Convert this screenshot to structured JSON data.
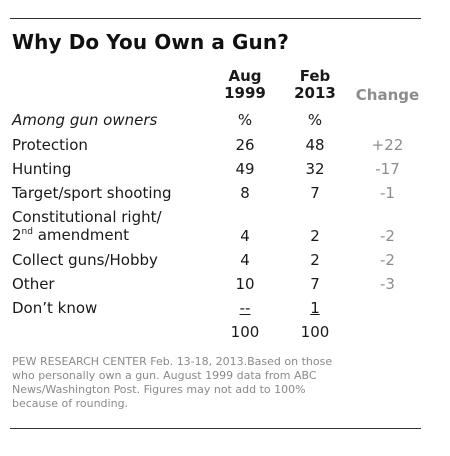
{
  "title": "Why Do You Own a Gun?",
  "columns": {
    "aug_line1": "Aug",
    "aug_line2": "1999",
    "feb_line1": "Feb",
    "feb_line2": "2013",
    "change": "Change"
  },
  "subheader": {
    "label": "Among gun owners",
    "aug": "%",
    "feb": "%"
  },
  "rows": [
    {
      "label": "Protection",
      "aug": "26",
      "feb": "48",
      "change": "+22"
    },
    {
      "label": "Hunting",
      "aug": "49",
      "feb": "32",
      "change": "-17"
    },
    {
      "label": "Target/sport shooting",
      "aug": "8",
      "feb": "7",
      "change": "-1"
    },
    {
      "label_line1": "Constitutional right/",
      "label_line2_pre": "2",
      "label_line2_sup": "nd",
      "label_line2_post": " amendment",
      "aug": "4",
      "feb": "2",
      "change": "-2"
    },
    {
      "label": "Collect guns/Hobby",
      "aug": "4",
      "feb": "2",
      "change": "-2"
    },
    {
      "label": "Other",
      "aug": "10",
      "feb": "7",
      "change": "-3"
    },
    {
      "label": "Don’t know",
      "aug": "--",
      "feb": "1",
      "change": ""
    }
  ],
  "totals": {
    "aug": "100",
    "feb": "100"
  },
  "source": "PEW RESEARCH  CENTER Feb. 13-18, 2013.Based on those\nwho personally own a gun. August 1999 data from ABC\nNews/Washington Post. Figures may not add to 100%\nbecause of rounding.",
  "chart_data": {
    "type": "table",
    "title": "Why Do You Own a Gun?",
    "columns": [
      "Aug 1999",
      "Feb 2013",
      "Change"
    ],
    "rows": [
      {
        "category": "Protection",
        "values": [
          26,
          48,
          22
        ]
      },
      {
        "category": "Hunting",
        "values": [
          49,
          32,
          -17
        ]
      },
      {
        "category": "Target/sport shooting",
        "values": [
          8,
          7,
          -1
        ]
      },
      {
        "category": "Constitutional right/ 2nd amendment",
        "values": [
          4,
          2,
          -2
        ]
      },
      {
        "category": "Collect guns/Hobby",
        "values": [
          4,
          2,
          -2
        ]
      },
      {
        "category": "Other",
        "values": [
          10,
          7,
          -3
        ]
      },
      {
        "category": "Don't know",
        "values": [
          null,
          1,
          null
        ]
      }
    ],
    "totals": [
      100,
      100
    ]
  }
}
